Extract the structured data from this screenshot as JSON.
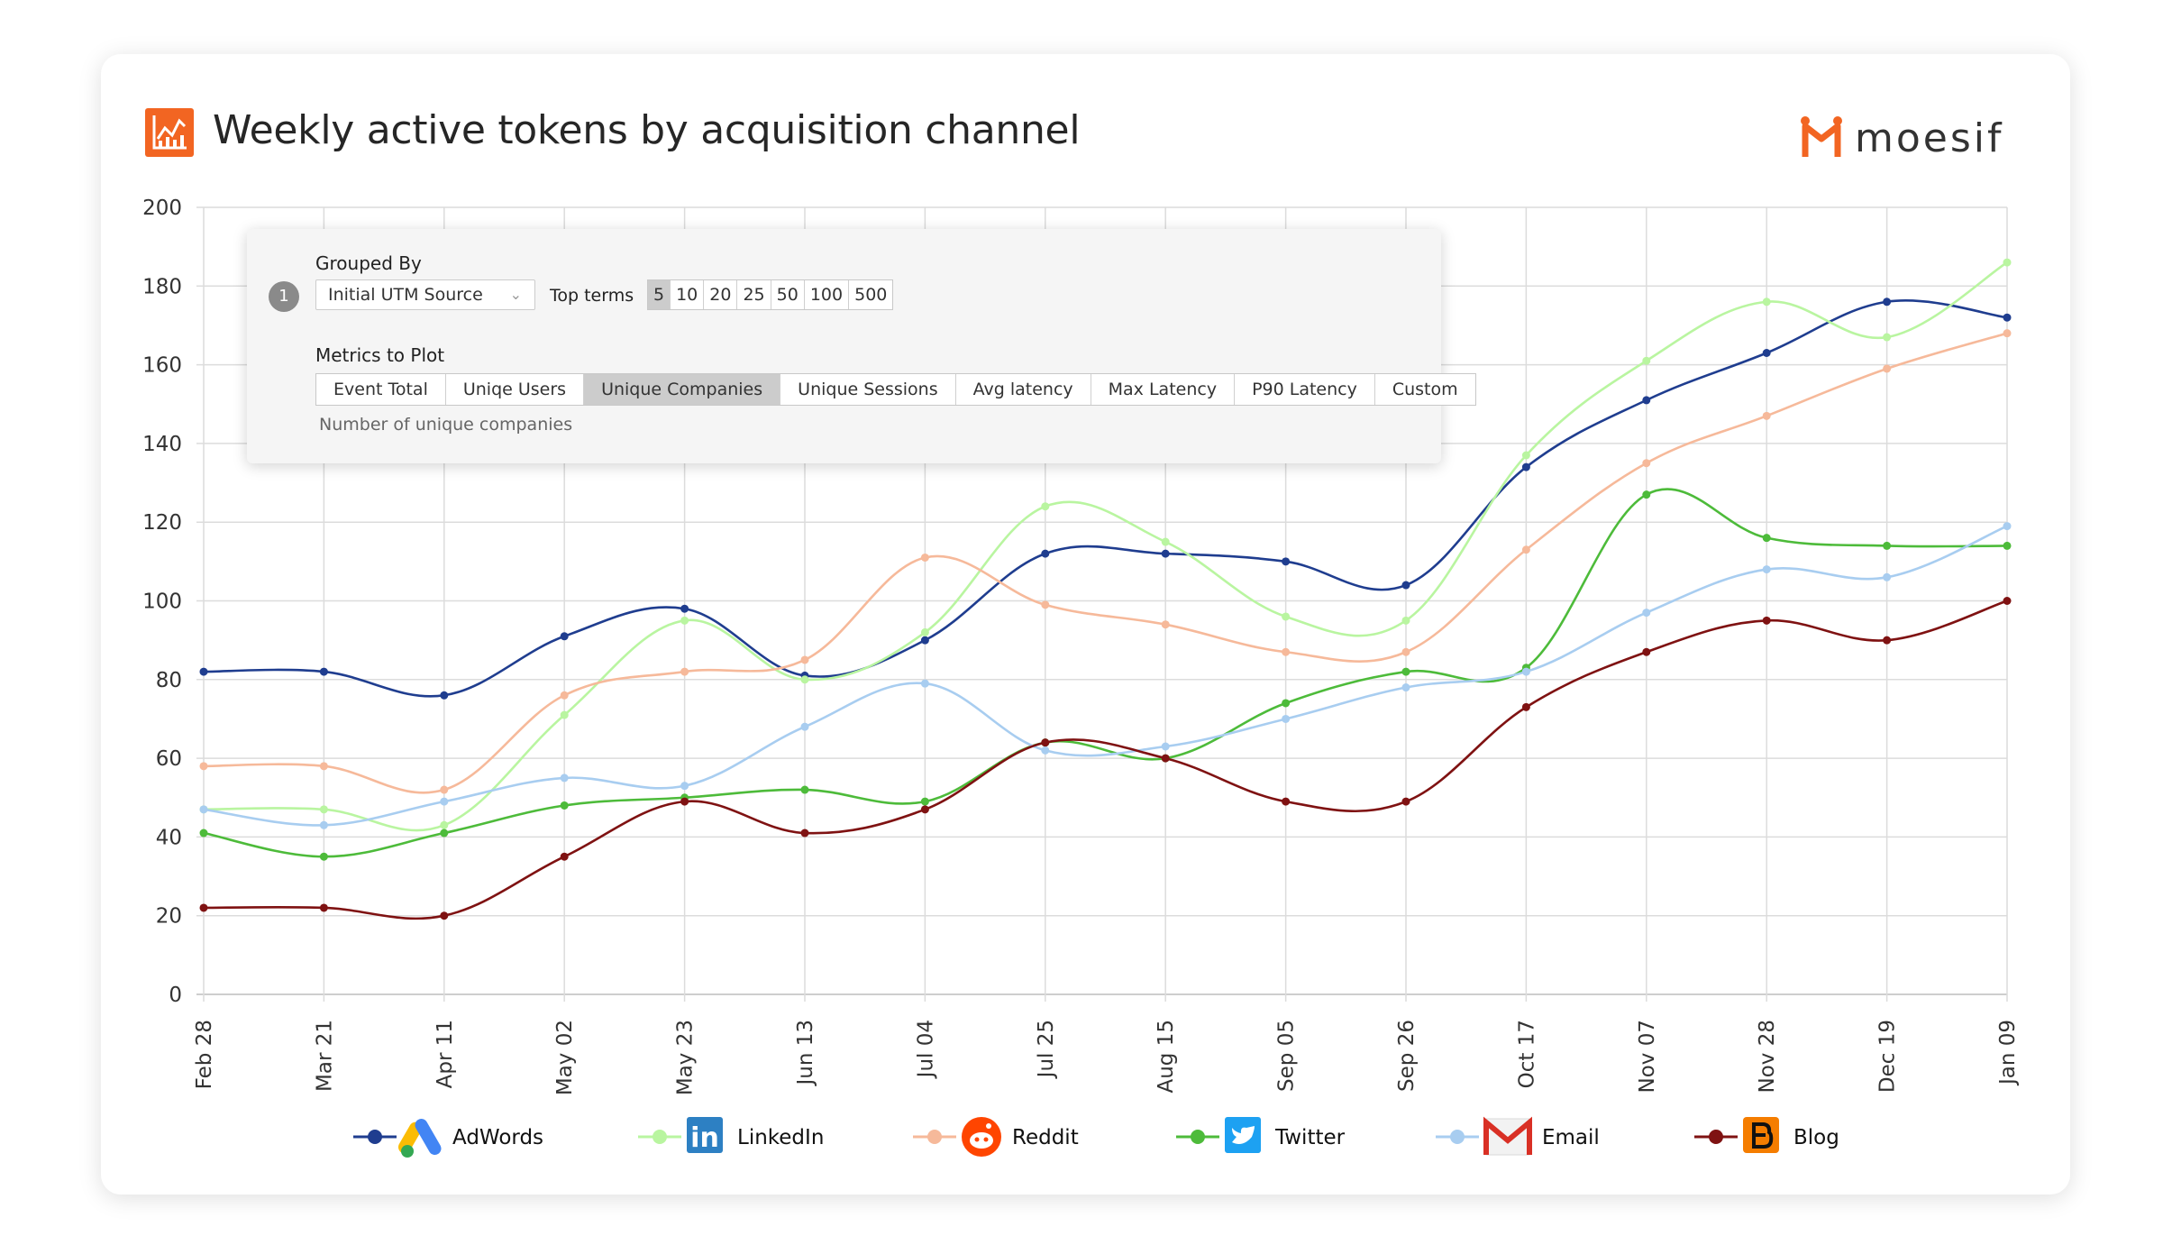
{
  "header": {
    "title": "Weekly active tokens by acquisition channel",
    "brand": "moesif"
  },
  "panel": {
    "step": "1",
    "grouped_by_label": "Grouped By",
    "group_select_value": "Initial UTM Source",
    "top_terms_label": "Top terms",
    "top_terms": [
      "5",
      "10",
      "20",
      "25",
      "50",
      "100",
      "500"
    ],
    "top_terms_selected": "5",
    "metrics_label": "Metrics to Plot",
    "metrics": [
      "Event Total",
      "Uniqe Users",
      "Unique Companies",
      "Unique Sessions",
      "Avg latency",
      "Max Latency",
      "P90 Latency",
      "Custom"
    ],
    "metric_selected": "Unique Companies",
    "metric_description": "Number of unique companies"
  },
  "chart_data": {
    "type": "line",
    "title": "Weekly active tokens by acquisition channel",
    "xlabel": "",
    "ylabel": "",
    "categories": [
      "Feb 28",
      "Mar 21",
      "Apr 11",
      "May 02",
      "May 23",
      "Jun 13",
      "Jul 04",
      "Jul 25",
      "Aug 15",
      "Sep 05",
      "Sep 26",
      "Oct 17",
      "Nov 07",
      "Nov 28",
      "Dec 19",
      "Jan 09"
    ],
    "ylim": [
      0,
      200
    ],
    "yticks": [
      0,
      20,
      40,
      60,
      80,
      100,
      120,
      140,
      160,
      180,
      200
    ],
    "grid": true,
    "smooth": true,
    "legend": "bottom",
    "series": [
      {
        "name": "AdWords",
        "color": "#1f3d8f",
        "icon": "google-ads-icon",
        "values": [
          82,
          82,
          76,
          91,
          98,
          81,
          90,
          112,
          112,
          110,
          104,
          134,
          151,
          163,
          176,
          172
        ]
      },
      {
        "name": "LinkedIn",
        "color": "#b9f5a0",
        "icon": "linkedin-icon",
        "values": [
          47,
          47,
          43,
          71,
          95,
          80,
          92,
          124,
          115,
          96,
          95,
          137,
          161,
          176,
          167,
          186
        ]
      },
      {
        "name": "Reddit",
        "color": "#f6b99a",
        "icon": "reddit-icon",
        "values": [
          58,
          58,
          52,
          76,
          82,
          85,
          111,
          99,
          94,
          87,
          87,
          113,
          135,
          147,
          159,
          168
        ]
      },
      {
        "name": "Twitter",
        "color": "#4dbb3a",
        "icon": "twitter-icon",
        "values": [
          41,
          35,
          41,
          48,
          50,
          52,
          49,
          64,
          60,
          74,
          82,
          83,
          127,
          116,
          114,
          114
        ]
      },
      {
        "name": "Email",
        "color": "#a8cdf0",
        "icon": "email-icon",
        "values": [
          47,
          43,
          49,
          55,
          53,
          68,
          79,
          62,
          63,
          70,
          78,
          82,
          97,
          108,
          106,
          119
        ]
      },
      {
        "name": "Blog",
        "color": "#7f1212",
        "icon": "blogger-icon",
        "values": [
          22,
          22,
          20,
          35,
          49,
          41,
          47,
          64,
          60,
          49,
          49,
          73,
          87,
          95,
          90,
          100
        ]
      }
    ]
  }
}
